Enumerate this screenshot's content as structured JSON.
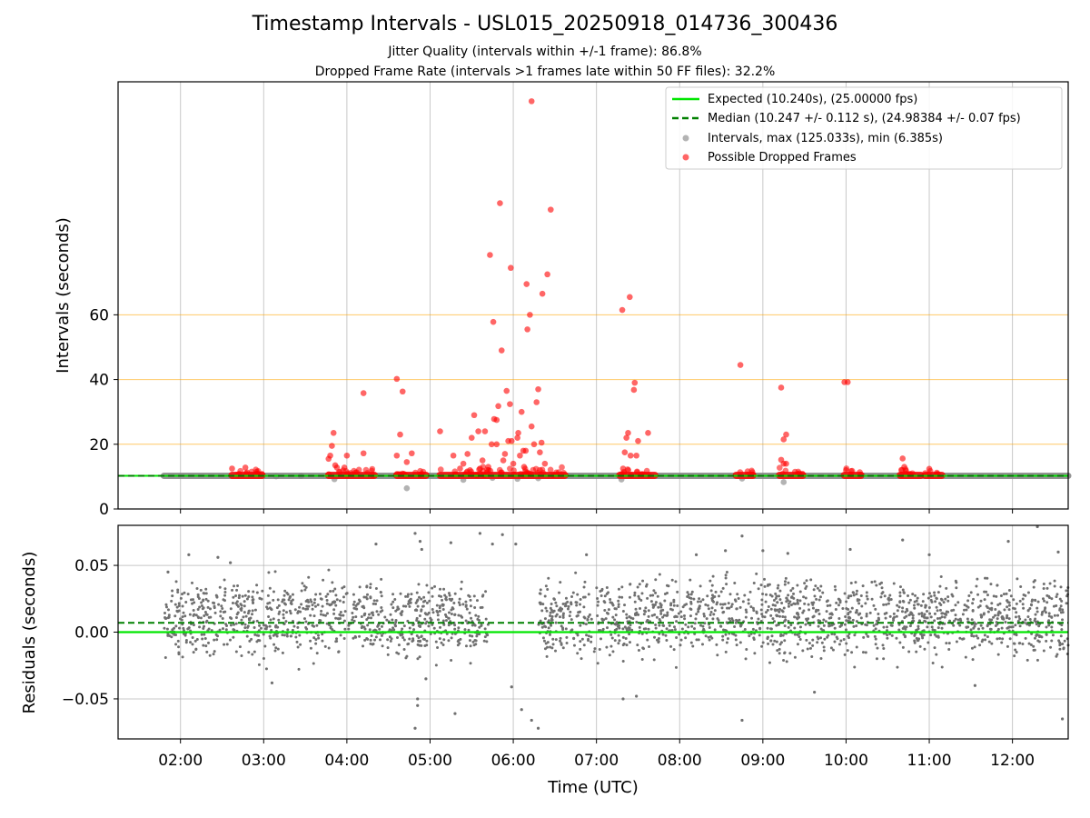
{
  "chart_data": [
    {
      "panel": "top",
      "type": "scatter",
      "title": "Timestamp Intervals - USL015_20250918_014736_300436",
      "subtitle_1": "Jitter Quality (intervals within +/-1 frame): 86.8%",
      "subtitle_2": "Dropped Frame Rate (intervals >1 frames late within 50 FF files): 32.2%",
      "xlabel": "",
      "ylabel": "Intervals (seconds)",
      "xlim_hours": [
        1.25,
        12.67
      ],
      "ylim": [
        0,
        132
      ],
      "yticks": [
        0,
        20,
        40,
        60
      ],
      "hlines_orange": [
        20,
        40,
        60
      ],
      "legend": {
        "placement": "top-right",
        "entries": [
          {
            "key": "expected",
            "label": "Expected (10.240s), (25.00000 fps)",
            "color": "#00e600",
            "style": "solid line"
          },
          {
            "key": "median",
            "label": "Median (10.247 +/- 0.112 s), (24.98384 +/- 0.07 fps)",
            "color": "#008000",
            "style": "dashed line"
          },
          {
            "key": "intervals",
            "label": "Intervals, max (125.033s), min (6.385s)",
            "color": "#808080",
            "style": "dot"
          },
          {
            "key": "dropped",
            "label": "Possible Dropped Frames",
            "color": "#ff0000",
            "style": "dot"
          }
        ]
      },
      "series": [
        {
          "name": "Expected",
          "type": "hline",
          "y": 10.24,
          "color": "#00e600"
        },
        {
          "name": "Median",
          "type": "hline",
          "y": 10.247,
          "color": "#008000"
        },
        {
          "name": "Intervals band",
          "type": "band",
          "x_range": [
            1.8,
            12.67
          ],
          "y": 10.24,
          "color": "#808080"
        },
        {
          "name": "Intervals outliers",
          "color": "#808080",
          "points": [
            [
              2.9,
              10.8
            ],
            [
              3.85,
              9.2
            ],
            [
              4.72,
              6.4
            ],
            [
              5.4,
              9.0
            ],
            [
              6.05,
              9.3
            ],
            [
              7.3,
              9.1
            ],
            [
              8.75,
              9.4
            ],
            [
              9.25,
              8.3
            ],
            [
              5.75,
              9.6
            ],
            [
              6.3,
              9.5
            ]
          ]
        },
        {
          "name": "Dropped blocks",
          "color": "#ff0000",
          "ranges": [
            [
              2.62,
              2.98
            ],
            [
              3.78,
              4.33
            ],
            [
              4.6,
              4.95
            ],
            [
              5.12,
              6.62
            ],
            [
              7.28,
              7.7
            ],
            [
              8.68,
              8.88
            ],
            [
              9.2,
              9.48
            ],
            [
              9.98,
              10.18
            ],
            [
              10.65,
              10.9
            ],
            [
              10.95,
              11.15
            ]
          ]
        },
        {
          "name": "Possible Dropped Frames",
          "color": "#ff0000",
          "points": [
            [
              2.62,
              12.5
            ],
            [
              2.78,
              12.8
            ],
            [
              2.8,
              11.3
            ],
            [
              3.78,
              15.5
            ],
            [
              3.8,
              16.5
            ],
            [
              3.82,
              19.5
            ],
            [
              3.84,
              23.5
            ],
            [
              3.86,
              13.5
            ],
            [
              3.88,
              12.8
            ],
            [
              3.97,
              12.8
            ],
            [
              4.0,
              16.5
            ],
            [
              4.2,
              17.2
            ],
            [
              4.2,
              35.8
            ],
            [
              4.6,
              40.2
            ],
            [
              4.6,
              16.5
            ],
            [
              4.64,
              23
            ],
            [
              4.67,
              36.3
            ],
            [
              4.72,
              14.5
            ],
            [
              4.78,
              17.2
            ],
            [
              5.12,
              24
            ],
            [
              5.28,
              16.5
            ],
            [
              5.36,
              12.5
            ],
            [
              5.4,
              14
            ],
            [
              5.45,
              17
            ],
            [
              5.48,
              12
            ],
            [
              5.5,
              22
            ],
            [
              5.53,
              29
            ],
            [
              5.58,
              24
            ],
            [
              5.6,
              12.5
            ],
            [
              5.63,
              15
            ],
            [
              5.66,
              24
            ],
            [
              5.7,
              13
            ],
            [
              5.72,
              78.5
            ],
            [
              5.74,
              20
            ],
            [
              5.76,
              57.8
            ],
            [
              5.77,
              27.8
            ],
            [
              5.8,
              20
            ],
            [
              5.8,
              27.5
            ],
            [
              5.82,
              31.8
            ],
            [
              5.84,
              94.5
            ],
            [
              5.86,
              49
            ],
            [
              5.88,
              15
            ],
            [
              5.9,
              17
            ],
            [
              5.92,
              36.5
            ],
            [
              5.94,
              21
            ],
            [
              5.96,
              32.4
            ],
            [
              5.98,
              21
            ],
            [
              5.97,
              74.5
            ],
            [
              6.0,
              14
            ],
            [
              6.05,
              22
            ],
            [
              6.06,
              23.5
            ],
            [
              6.08,
              16.5
            ],
            [
              6.1,
              30
            ],
            [
              6.12,
              18
            ],
            [
              6.13,
              13
            ],
            [
              6.15,
              18
            ],
            [
              6.16,
              69.5
            ],
            [
              6.17,
              55.5
            ],
            [
              6.2,
              60
            ],
            [
              6.22,
              25.5
            ],
            [
              6.22,
              126
            ],
            [
              6.25,
              20
            ],
            [
              6.28,
              33
            ],
            [
              6.3,
              37
            ],
            [
              6.32,
              17.5
            ],
            [
              6.34,
              20.5
            ],
            [
              6.35,
              66.5
            ],
            [
              6.38,
              14
            ],
            [
              6.41,
              72.5
            ],
            [
              6.45,
              92.5
            ],
            [
              7.31,
              61.5
            ],
            [
              7.32,
              12.5
            ],
            [
              7.34,
              17.5
            ],
            [
              7.36,
              22
            ],
            [
              7.38,
              23.5
            ],
            [
              7.4,
              65.5
            ],
            [
              7.41,
              16.5
            ],
            [
              7.45,
              36.8
            ],
            [
              7.46,
              39
            ],
            [
              7.48,
              16.5
            ],
            [
              7.5,
              21
            ],
            [
              7.62,
              23.5
            ],
            [
              8.73,
              44.5
            ],
            [
              9.22,
              37.5
            ],
            [
              9.22,
              15.2
            ],
            [
              9.25,
              14
            ],
            [
              9.25,
              21.5
            ],
            [
              9.28,
              23
            ],
            [
              9.28,
              14
            ],
            [
              9.98,
              39.2
            ],
            [
              10.02,
              39.2
            ],
            [
              10.0,
              12
            ],
            [
              10.68,
              15.6
            ],
            [
              10.7,
              13
            ],
            [
              10.72,
              11.8
            ],
            [
              11.0,
              12.4
            ]
          ]
        }
      ],
      "gray_points": [
        [
          3.15,
          10.1
        ],
        [
          3.45,
          10.2
        ]
      ]
    },
    {
      "panel": "bottom",
      "type": "scatter",
      "xlabel": "Time (UTC)",
      "ylabel": "Residuals (seconds)",
      "xlim_hours": [
        1.25,
        12.67
      ],
      "ylim": [
        -0.08,
        0.08
      ],
      "yticks": [
        0.05,
        0.0,
        -0.05
      ],
      "ytick_labels": [
        "0.05",
        "0.00",
        "−0.05"
      ],
      "xtick_labels": [
        "02:00",
        "03:00",
        "04:00",
        "05:00",
        "06:00",
        "07:00",
        "08:00",
        "09:00",
        "10:00",
        "11:00",
        "12:00"
      ],
      "xticks_hours": [
        2,
        3,
        4,
        5,
        6,
        7,
        8,
        9,
        10,
        11,
        12
      ],
      "series": [
        {
          "name": "Expected residual",
          "type": "hline",
          "y": 0.0,
          "color": "#00e600"
        },
        {
          "name": "Median residual",
          "type": "hline",
          "y": 0.007,
          "color": "#008000"
        },
        {
          "name": "Residual scatter",
          "color": "#808080",
          "clusters": [
            {
              "x_range": [
                1.8,
                5.7
              ],
              "bands": [
                0.02,
                0.0
              ],
              "spread": 0.015,
              "count": 900
            },
            {
              "x_range": [
                6.3,
                12.67
              ],
              "bands": [
                0.02,
                0.0
              ],
              "spread": 0.018,
              "count": 1500
            }
          ],
          "outliers": [
            [
              1.85,
              0.045
            ],
            [
              2.1,
              0.058
            ],
            [
              2.45,
              0.056
            ],
            [
              2.6,
              0.052
            ],
            [
              3.1,
              -0.038
            ],
            [
              4.35,
              0.066
            ],
            [
              4.82,
              0.074
            ],
            [
              4.88,
              0.068
            ],
            [
              4.9,
              0.062
            ],
            [
              4.85,
              -0.05
            ],
            [
              4.82,
              -0.072
            ],
            [
              4.85,
              -0.055
            ],
            [
              4.95,
              -0.035
            ],
            [
              5.25,
              0.067
            ],
            [
              5.3,
              -0.061
            ],
            [
              5.6,
              0.074
            ],
            [
              5.75,
              0.066
            ],
            [
              5.87,
              0.073
            ],
            [
              5.98,
              -0.041
            ],
            [
              6.03,
              0.066
            ],
            [
              6.1,
              -0.058
            ],
            [
              6.22,
              -0.066
            ],
            [
              6.3,
              -0.072
            ],
            [
              6.88,
              0.058
            ],
            [
              7.32,
              -0.05
            ],
            [
              7.48,
              -0.048
            ],
            [
              8.2,
              0.058
            ],
            [
              8.55,
              0.061
            ],
            [
              8.75,
              0.072
            ],
            [
              8.75,
              -0.066
            ],
            [
              9.0,
              0.061
            ],
            [
              9.3,
              0.059
            ],
            [
              9.62,
              -0.045
            ],
            [
              10.05,
              0.062
            ],
            [
              10.68,
              0.069
            ],
            [
              11.0,
              0.058
            ],
            [
              11.55,
              -0.04
            ],
            [
              11.95,
              0.068
            ],
            [
              12.3,
              0.079
            ],
            [
              12.55,
              0.06
            ],
            [
              12.6,
              -0.065
            ]
          ]
        }
      ]
    }
  ]
}
